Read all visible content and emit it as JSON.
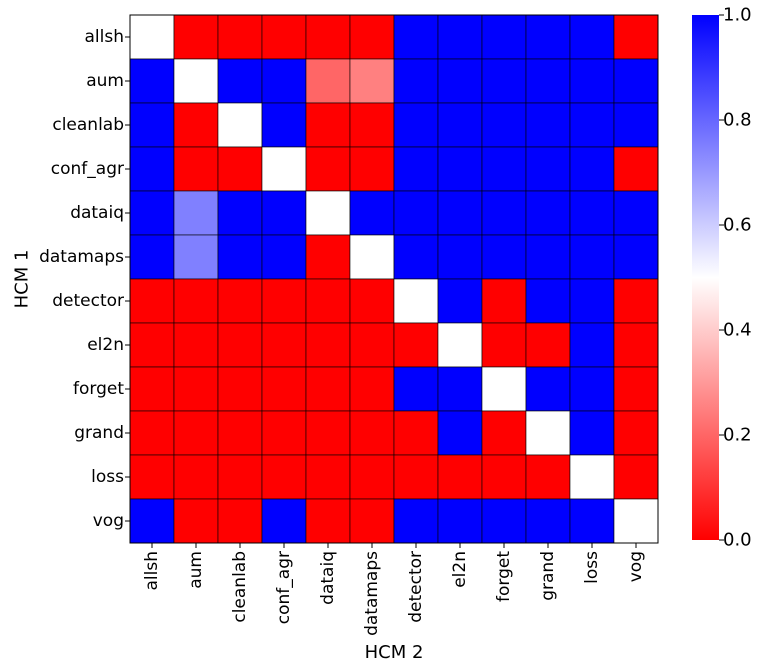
{
  "chart_data": {
    "type": "heatmap",
    "xlabel": "HCM 2",
    "ylabel": "HCM 1",
    "x_categories": [
      "allsh",
      "aum",
      "cleanlab",
      "conf_agr",
      "dataiq",
      "datamaps",
      "detector",
      "el2n",
      "forget",
      "grand",
      "loss",
      "vog"
    ],
    "y_categories": [
      "allsh",
      "aum",
      "cleanlab",
      "conf_agr",
      "dataiq",
      "datamaps",
      "detector",
      "el2n",
      "forget",
      "grand",
      "loss",
      "vog"
    ],
    "values": [
      [
        0.5,
        0.0,
        0.0,
        0.0,
        0.0,
        0.0,
        1.0,
        1.0,
        1.0,
        1.0,
        1.0,
        0.0
      ],
      [
        1.0,
        0.5,
        1.0,
        1.0,
        0.2,
        0.25,
        1.0,
        1.0,
        1.0,
        1.0,
        1.0,
        1.0
      ],
      [
        1.0,
        0.0,
        0.5,
        1.0,
        0.0,
        0.0,
        1.0,
        1.0,
        1.0,
        1.0,
        1.0,
        1.0
      ],
      [
        1.0,
        0.0,
        0.0,
        0.5,
        0.0,
        0.0,
        1.0,
        1.0,
        1.0,
        1.0,
        1.0,
        0.0
      ],
      [
        1.0,
        0.75,
        1.0,
        1.0,
        0.5,
        1.0,
        1.0,
        1.0,
        1.0,
        1.0,
        1.0,
        1.0
      ],
      [
        1.0,
        0.75,
        1.0,
        1.0,
        0.0,
        0.5,
        1.0,
        1.0,
        1.0,
        1.0,
        1.0,
        1.0
      ],
      [
        0.0,
        0.0,
        0.0,
        0.0,
        0.0,
        0.0,
        0.5,
        1.0,
        0.0,
        1.0,
        1.0,
        0.0
      ],
      [
        0.0,
        0.0,
        0.0,
        0.0,
        0.0,
        0.0,
        0.0,
        0.5,
        0.0,
        0.0,
        1.0,
        0.0
      ],
      [
        0.0,
        0.0,
        0.0,
        0.0,
        0.0,
        0.0,
        1.0,
        1.0,
        0.5,
        1.0,
        1.0,
        0.0
      ],
      [
        0.0,
        0.0,
        0.0,
        0.0,
        0.0,
        0.0,
        0.0,
        1.0,
        0.0,
        0.5,
        1.0,
        0.0
      ],
      [
        0.0,
        0.0,
        0.0,
        0.0,
        0.0,
        0.0,
        0.0,
        0.0,
        0.0,
        0.0,
        0.5,
        0.0
      ],
      [
        1.0,
        0.0,
        0.0,
        1.0,
        0.0,
        0.0,
        1.0,
        1.0,
        1.0,
        1.0,
        1.0,
        0.5
      ]
    ],
    "colorbar": {
      "range": [
        0.0,
        1.0
      ],
      "ticks": [
        "0.0",
        "0.2",
        "0.4",
        "0.6",
        "0.8",
        "1.0"
      ],
      "colormap": "bwr_r",
      "low_color": "#ff0000",
      "mid_color": "#ffffff",
      "high_color": "#0000ff"
    },
    "grid": true,
    "cell_border_color": "#000000"
  }
}
